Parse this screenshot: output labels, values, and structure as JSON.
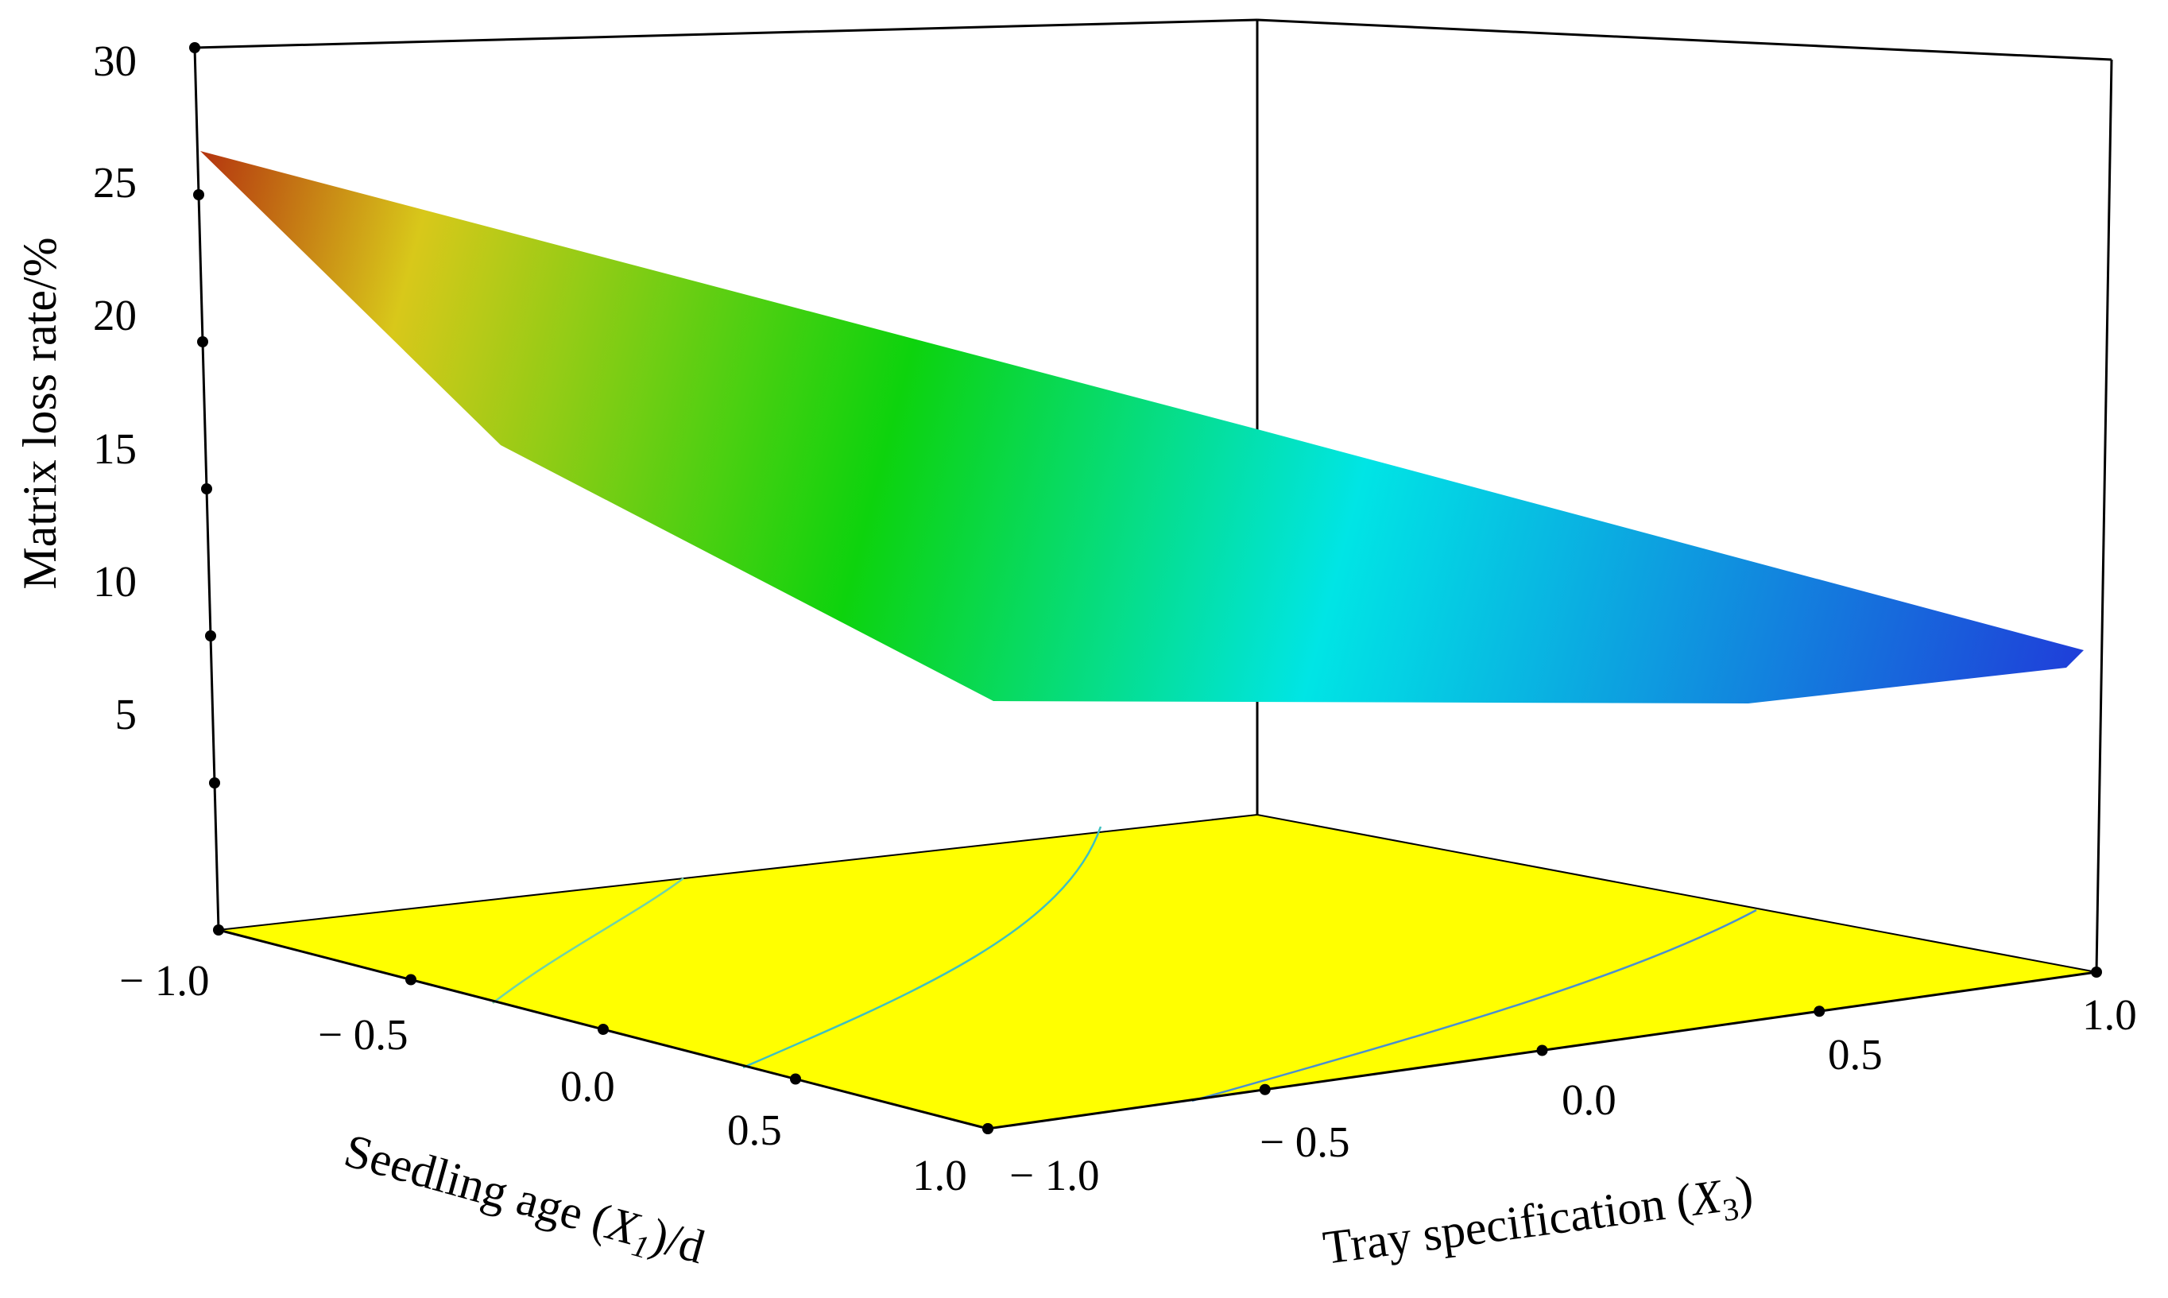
{
  "chart_data": {
    "type": "surface3d",
    "title": "",
    "zlabel": "Matrix loss rate/%",
    "xlabel": {
      "text": "Seedling age (",
      "var": "X",
      "sub": "1",
      "suffix": ")/d"
    },
    "ylabel": {
      "text": "Tray specification (",
      "var": "X",
      "sub": "3",
      "suffix": ")"
    },
    "x_ticks": [
      "− 1.0",
      "− 0.5",
      "0.0",
      "0.5",
      "1.0"
    ],
    "y_ticks": [
      "− 1.0",
      "− 0.5",
      "0.0",
      "0.5",
      "1.0"
    ],
    "z_ticks": [
      "5",
      "10",
      "15",
      "20",
      "25",
      "30"
    ],
    "x_range": [
      -1,
      1
    ],
    "y_range": [
      -1,
      1
    ],
    "z_range": [
      0,
      30
    ],
    "corner_values": [
      {
        "x": -1,
        "y": -1,
        "z": 26.0
      },
      {
        "x": 1,
        "y": -1,
        "z": 6.0
      },
      {
        "x": -1,
        "y": 1,
        "z": 12.0
      },
      {
        "x": 1,
        "y": 1,
        "z": 7.5
      }
    ],
    "colormap": [
      "#1f3fd9",
      "#00e5e5",
      "#0dd30d",
      "#d8c81a",
      "#b4330f"
    ],
    "floor_color": "#ffff00",
    "contour_colors": [
      "#6fd3a8",
      "#3fc0c0",
      "#4a8fd0"
    ]
  }
}
